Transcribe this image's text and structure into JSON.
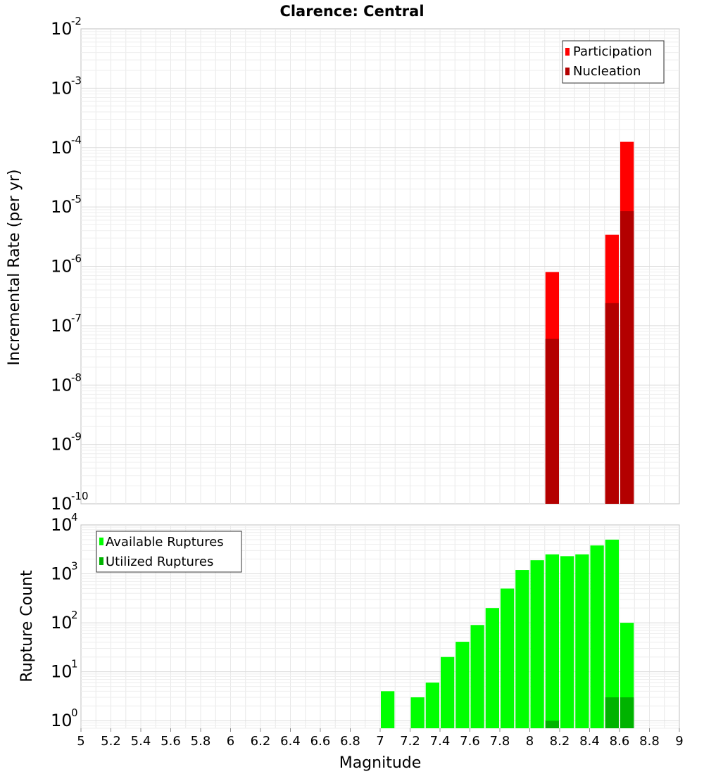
{
  "chart_data": [
    {
      "type": "bar",
      "title": "Clarence: Central",
      "ylabel": "Incremental Rate (per yr)",
      "xlabel": "",
      "yscale": "log",
      "ylim": [
        1e-10,
        0.01
      ],
      "xlim": [
        5,
        9
      ],
      "y_tick_exponents": [
        -10,
        -9,
        -8,
        -7,
        -6,
        -5,
        -4,
        -3,
        -2
      ],
      "grid": true,
      "legend_position": "top-right",
      "bin_width": 0.1,
      "series": [
        {
          "name": "Participation",
          "color": "#ff0000",
          "points": [
            {
              "x": 8.15,
              "y": 8e-07
            },
            {
              "x": 8.55,
              "y": 3.4e-06
            },
            {
              "x": 8.65,
              "y": 0.000125
            }
          ]
        },
        {
          "name": "Nucleation",
          "color": "#b30000",
          "points": [
            {
              "x": 8.15,
              "y": 6e-08
            },
            {
              "x": 8.55,
              "y": 2.4e-07
            },
            {
              "x": 8.65,
              "y": 8.5e-06
            }
          ]
        }
      ]
    },
    {
      "type": "bar",
      "title": "",
      "ylabel": "Rupture Count",
      "xlabel": "Magnitude",
      "yscale": "log",
      "ylim": [
        0.7,
        10000
      ],
      "xlim": [
        5,
        9
      ],
      "y_tick_exponents": [
        0,
        1,
        2,
        3,
        4
      ],
      "x_ticks": [
        "5",
        "5.2",
        "5.4",
        "5.6",
        "5.8",
        "6",
        "6.2",
        "6.4",
        "6.6",
        "6.8",
        "7",
        "7.2",
        "7.4",
        "7.6",
        "7.8",
        "8",
        "8.2",
        "8.4",
        "8.6",
        "8.8",
        "9"
      ],
      "grid": true,
      "legend_position": "top-left",
      "bin_width": 0.1,
      "series": [
        {
          "name": "Available Ruptures",
          "color": "#00ff00",
          "points": [
            {
              "x": 7.05,
              "y": 4
            },
            {
              "x": 7.25,
              "y": 3
            },
            {
              "x": 7.35,
              "y": 6
            },
            {
              "x": 7.45,
              "y": 20
            },
            {
              "x": 7.55,
              "y": 41
            },
            {
              "x": 7.65,
              "y": 90
            },
            {
              "x": 7.75,
              "y": 200
            },
            {
              "x": 7.85,
              "y": 500
            },
            {
              "x": 7.95,
              "y": 1200
            },
            {
              "x": 8.05,
              "y": 1900
            },
            {
              "x": 8.15,
              "y": 2500
            },
            {
              "x": 8.25,
              "y": 2300
            },
            {
              "x": 8.35,
              "y": 2500
            },
            {
              "x": 8.45,
              "y": 3800
            },
            {
              "x": 8.55,
              "y": 5000
            },
            {
              "x": 8.65,
              "y": 100
            }
          ]
        },
        {
          "name": "Utilized Ruptures",
          "color": "#00b300",
          "points": [
            {
              "x": 8.15,
              "y": 1
            },
            {
              "x": 8.55,
              "y": 3
            },
            {
              "x": 8.65,
              "y": 3
            }
          ]
        }
      ]
    }
  ]
}
